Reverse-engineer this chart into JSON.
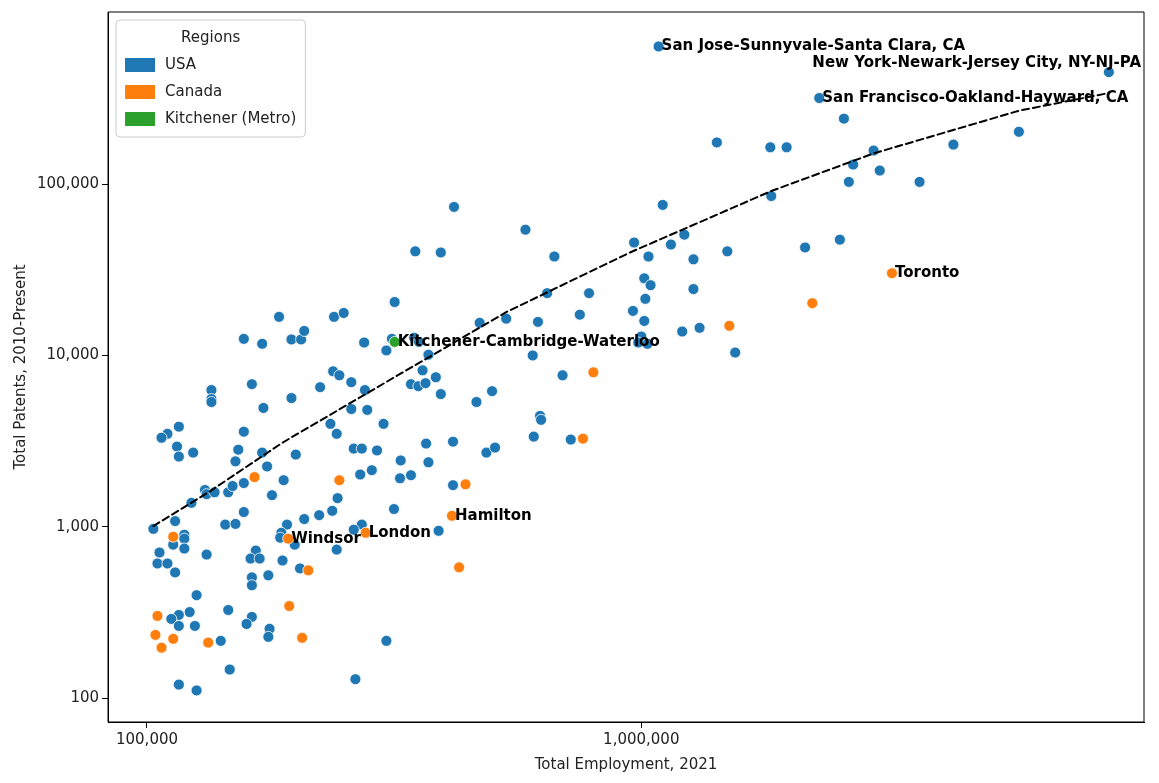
{
  "chart_data": {
    "type": "scatter",
    "xlabel": "Total Employment, 2021",
    "ylabel": "Total Patents, 2010-Present",
    "log": "xy",
    "grid": false,
    "legend": "top left",
    "legend_title": "Regions",
    "marker": "circle",
    "xlim": [
      83400,
      10400000
    ],
    "ylim": [
      72.6,
      1010000
    ],
    "xticks": [
      {
        "value": 100000,
        "label": "100,000"
      },
      {
        "value": 1000000,
        "label": "1,000,000"
      }
    ],
    "yticks": [
      {
        "value": 100,
        "label": "100"
      },
      {
        "value": 1000,
        "label": "1,000"
      },
      {
        "value": 10000,
        "label": "10,000"
      },
      {
        "value": 100000,
        "label": "100,000"
      }
    ],
    "series": [
      {
        "name": "USA",
        "color": "#1f77b4",
        "x": [
          103000,
          106000,
          105000,
          110000,
          114000,
          113000,
          119000,
          119000,
          119000,
          114000,
          132000,
          123000,
          131000,
          132000,
          137000,
          146000,
          149000,
          157000,
          189000,
          179000,
          157000,
          144000,
          151000,
          208000,
          192000,
          187000,
          186000,
          166000,
          162000,
          169000,
          188000,
          204000,
          163000,
          163000,
          176000,
          126000,
          146000,
          122000,
          116000,
          112000,
          116000,
          125000,
          163000,
          159000,
          177000,
          176000,
          141000,
          147000,
          116000,
          126000,
          185000,
          157000,
          171000,
          196000,
          205000,
          208000,
          163000,
          135000,
          135000,
          135000,
          196000,
          172000,
          116000,
          110000,
          107000,
          157000,
          115000,
          116000,
          124000,
          153000,
          151000,
          171000,
          200000,
          175000,
          418000,
          583000,
          349000,
          393000,
          317000,
          239000,
          250000,
          275000,
          305000,
          313000,
          347000,
          355000,
          371000,
          361000,
          384000,
          342000,
          354000,
          366000,
          393000,
          471000,
          533000,
          499000,
          464000,
          238000,
          245000,
          259000,
          224000,
          276000,
          259000,
          279000,
          235000,
          242000,
          301000,
          262000,
          272000,
          292000,
          367000,
          416000,
          486000,
          506000,
          326000,
          371000,
          270000,
          285000,
          325000,
          342000,
          416000,
          243000,
          237000,
          223000,
          316000,
          272000,
          262000,
          389000,
          199000,
          242000,
          305000,
          264000,
          1105000,
          667000,
          967000,
          1148000,
          1222000,
          1034000,
          1275000,
          1493000,
          1832000,
          645000,
          784000,
          1014000,
          1044000,
          1019000,
          1275000,
          962000,
          751000,
          618000,
          1014000,
          1000000,
          986000,
          1029000,
          1210000,
          1312000,
          1549000,
          603000,
          693000,
          624000,
          627000,
          606000,
          720000,
          1084000,
          8830000,
          2291000,
          2570000,
          1422000,
          1824000,
          1968000,
          4280000,
          5807000,
          2951000,
          2683000,
          3037000,
          2630000,
          3656000,
          2145000,
          2522000
        ],
        "values": [
          973,
          708,
          611,
          611,
          542,
          787,
          899,
          853,
          747,
          1080,
          689,
          1380,
          1640,
          1550,
          1590,
          1590,
          1730,
          1800,
          1870,
          1530,
          1220,
          1030,
          1040,
          1110,
          1030,
          923,
          864,
          727,
          653,
          653,
          636,
          572,
          507,
          456,
          521,
          399,
          327,
          318,
          306,
          290,
          264,
          264,
          298,
          271,
          254,
          228,
          216,
          147,
          120,
          111,
          16800,
          12500,
          11700,
          12400,
          12400,
          13900,
          6800,
          6280,
          5570,
          5350,
          5640,
          4940,
          3840,
          3490,
          3310,
          3590,
          2940,
          2570,
          2710,
          2820,
          2410,
          2710,
          2640,
          2250,
          73600,
          54200,
          40500,
          39900,
          20500,
          16800,
          17700,
          11900,
          10700,
          12500,
          12700,
          12000,
          10100,
          8190,
          7460,
          6800,
          6620,
          6890,
          5950,
          15500,
          16400,
          6190,
          5350,
          8080,
          7660,
          6980,
          6530,
          6280,
          4870,
          4810,
          3990,
          3490,
          3990,
          2860,
          2860,
          2790,
          3060,
          3140,
          2710,
          2900,
          2440,
          2380,
          2020,
          2140,
          1920,
          2000,
          1750,
          1470,
          1240,
          1170,
          1270,
          1030,
          962,
          948,
          787,
          736,
          216,
          129,
          75600,
          37800,
          45600,
          44400,
          50700,
          37800,
          36400,
          40500,
          85200,
          23100,
          23100,
          28200,
          25700,
          21400,
          24400,
          18200,
          17300,
          15700,
          15900,
          12900,
          11900,
          11700,
          13800,
          14500,
          10400,
          10000,
          7660,
          4440,
          4210,
          3360,
          3230,
          636000,
          450000,
          318000,
          241000,
          175000,
          164000,
          164000,
          170000,
          202000,
          157000,
          130000,
          120000,
          103000,
          103000,
          42700,
          47400
        ]
      },
      {
        "name": "Canada",
        "color": "#ff7f0e",
        "x": [
          165000,
          245000,
          441000,
          414000,
          277000,
          193000,
          212000,
          428000,
          194000,
          206000,
          113000,
          105000,
          104000,
          107000,
          113000,
          133000,
          800000,
          762000,
          1507000,
          2218000,
          3215000
        ],
        "values": [
          1950,
          1870,
          1770,
          1160,
          923,
          853,
          557,
          580,
          345,
          225,
          875,
          302,
          234,
          197,
          222,
          211,
          7970,
          3270,
          14900,
          20200,
          30200
        ]
      },
      {
        "name": "Kitchener (Metro)",
        "color": "#2ca02c",
        "x": [
          317000
        ],
        "values": [
          12000
        ]
      },
      {
        "type": "line",
        "color": "#000000",
        "line_style": "dashed",
        "marker": "none",
        "x": [
          103000,
          134000,
          188000,
          302000,
          535000,
          949000,
          1832000,
          2951000,
          5807000,
          8830000
        ],
        "values": [
          1010,
          1610,
          3100,
          6890,
          18000,
          39900,
          91100,
          151000,
          268000,
          340000
        ]
      }
    ],
    "annotations": [
      {
        "text": "San Jose-Sunnyvale-Santa Clara, CA",
        "x": 1084000,
        "y": 636000
      },
      {
        "text": "New York-Newark-Jersey City, NY-NJ-PA",
        "x": 8830000,
        "y": 450000
      },
      {
        "text": "San Francisco-Oakland-Hayward, CA",
        "x": 2291000,
        "y": 318000
      },
      {
        "text": "Toronto",
        "x": 3215000,
        "y": 30200
      },
      {
        "text": "Kitchener-Cambridge-Waterloo",
        "x": 317000,
        "y": 12000
      },
      {
        "text": "Hamilton",
        "x": 414000,
        "y": 1160
      },
      {
        "text": "London",
        "x": 277000,
        "y": 923
      },
      {
        "text": "Windsor",
        "x": 193000,
        "y": 853
      }
    ]
  }
}
